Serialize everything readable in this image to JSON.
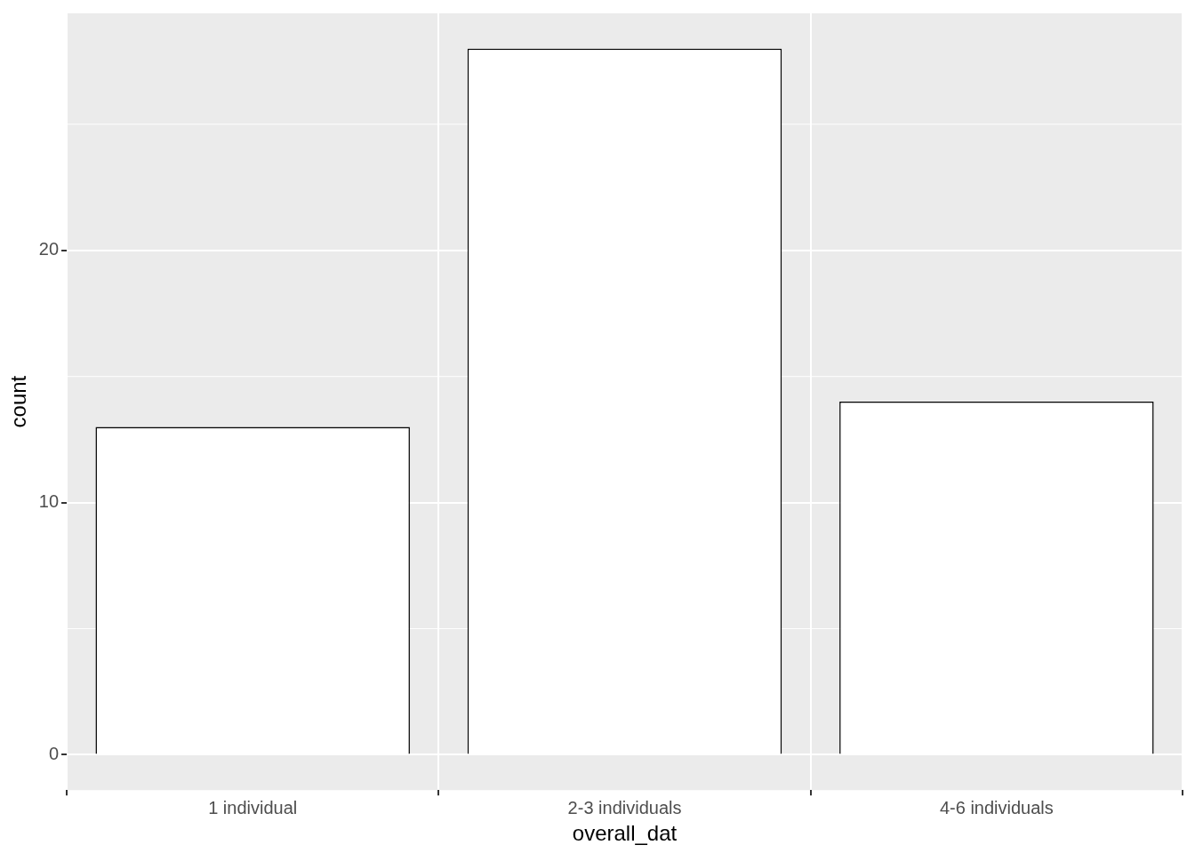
{
  "chart_data": {
    "type": "bar",
    "xlabel": "overall_dat",
    "ylabel": "count",
    "categories": [
      "1 individual",
      "2-3 individuals",
      "4-6 individuals"
    ],
    "values": [
      13,
      28,
      14
    ],
    "color": "#ffffff",
    "ylim": [
      -1.4,
      29.4
    ],
    "yticks": [
      0,
      10,
      20
    ],
    "grid": true
  }
}
